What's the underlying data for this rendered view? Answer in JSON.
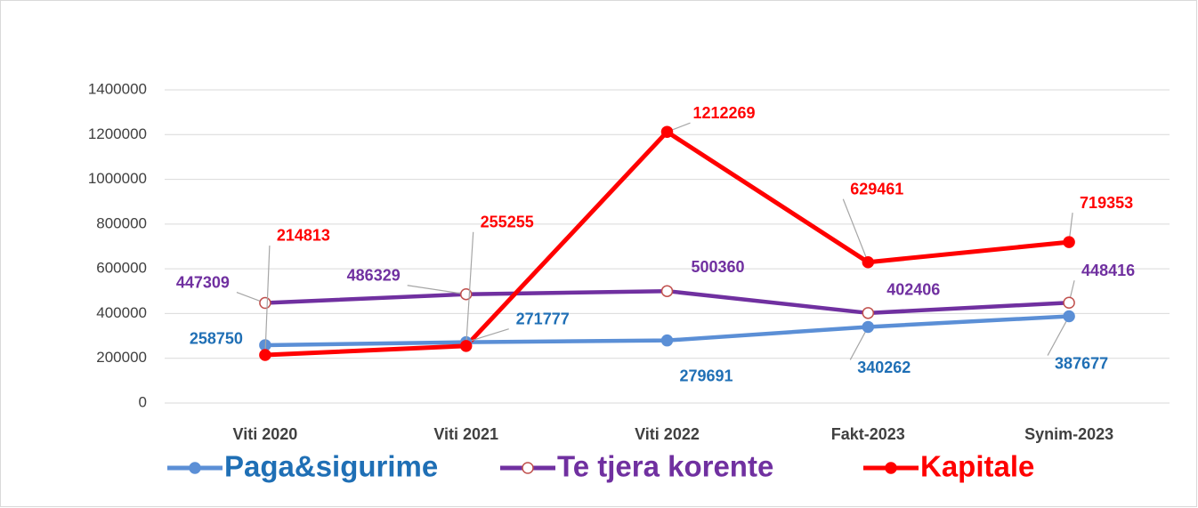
{
  "chart_data": {
    "type": "line",
    "categories": [
      "Viti 2020",
      "Viti 2021",
      "Viti 2022",
      "Fakt-2023",
      "Synim-2023"
    ],
    "series": [
      {
        "name": "Paga&sigurime",
        "color": "#5b8fd6",
        "label_color": "#1f6fb5",
        "marker_fill": "#5b8fd6",
        "marker_stroke": "#5b8fd6",
        "values": [
          258750,
          271777,
          279691,
          340262,
          387677
        ]
      },
      {
        "name": "Te tjera korente",
        "color": "#7030a0",
        "label_color": "#7030a0",
        "marker_fill": "#ffffff",
        "marker_stroke": "#c0504d",
        "values": [
          447309,
          486329,
          500360,
          402406,
          448416
        ]
      },
      {
        "name": "Kapitale",
        "color": "#ff0000",
        "label_color": "#ff0000",
        "marker_fill": "#ff0000",
        "marker_stroke": "#ff0000",
        "values": [
          214813,
          255255,
          1212269,
          629461,
          719353
        ]
      }
    ],
    "ylim": [
      0,
      1400000
    ],
    "yticks": [
      0,
      200000,
      400000,
      600000,
      800000,
      1000000,
      1200000,
      1400000
    ],
    "grid": true,
    "legend": "bottom"
  }
}
